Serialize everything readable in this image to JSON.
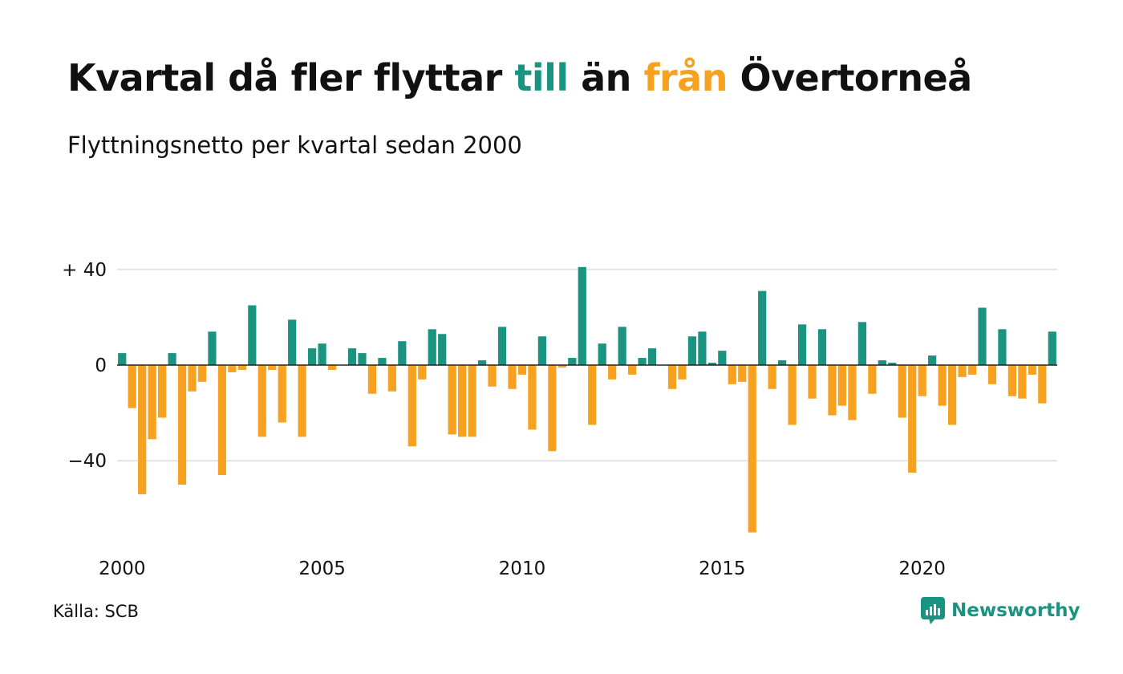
{
  "title": {
    "part1": "Kvartal då fler flyttar ",
    "highlight_pos": "till",
    "part2": " än ",
    "highlight_neg": "från",
    "part3": " Övertorneå"
  },
  "subtitle": "Flyttningsnetto per kvartal sedan 2000",
  "source": "Källa: SCB",
  "brand": "Newsworthy",
  "colors": {
    "positive": "#1a9481",
    "negative": "#f6a11f",
    "grid": "#e3e3e3",
    "baseline": "#222222"
  },
  "chart_data": {
    "type": "bar",
    "title": "Kvartal då fler flyttar till än från Övertorneå",
    "subtitle": "Flyttningsnetto per kvartal sedan 2000",
    "xlabel": "",
    "ylabel": "",
    "ylim": [
      -72,
      44
    ],
    "grid": true,
    "legend": "none",
    "y_ticks": [
      {
        "value": 40,
        "label": "+ 40"
      },
      {
        "value": 0,
        "label": "0"
      },
      {
        "value": -40,
        "label": "−40"
      }
    ],
    "x_ticks": [
      {
        "quarter": "2000-Q1",
        "label": "2000"
      },
      {
        "quarter": "2005-Q1",
        "label": "2005"
      },
      {
        "quarter": "2010-Q1",
        "label": "2010"
      },
      {
        "quarter": "2015-Q1",
        "label": "2015"
      },
      {
        "quarter": "2020-Q1",
        "label": "2020"
      }
    ],
    "categories": [
      "2000-Q1",
      "2000-Q2",
      "2000-Q3",
      "2000-Q4",
      "2001-Q1",
      "2001-Q2",
      "2001-Q3",
      "2001-Q4",
      "2002-Q1",
      "2002-Q2",
      "2002-Q3",
      "2002-Q4",
      "2003-Q1",
      "2003-Q2",
      "2003-Q3",
      "2003-Q4",
      "2004-Q1",
      "2004-Q2",
      "2004-Q3",
      "2004-Q4",
      "2005-Q1",
      "2005-Q2",
      "2005-Q3",
      "2005-Q4",
      "2006-Q1",
      "2006-Q2",
      "2006-Q3",
      "2006-Q4",
      "2007-Q1",
      "2007-Q2",
      "2007-Q3",
      "2007-Q4",
      "2008-Q1",
      "2008-Q2",
      "2008-Q3",
      "2008-Q4",
      "2009-Q1",
      "2009-Q2",
      "2009-Q3",
      "2009-Q4",
      "2010-Q1",
      "2010-Q2",
      "2010-Q3",
      "2010-Q4",
      "2011-Q1",
      "2011-Q2",
      "2011-Q3",
      "2011-Q4",
      "2012-Q1",
      "2012-Q2",
      "2012-Q3",
      "2012-Q4",
      "2013-Q1",
      "2013-Q2",
      "2013-Q3",
      "2013-Q4",
      "2014-Q1",
      "2014-Q2",
      "2014-Q3",
      "2014-Q4",
      "2015-Q1",
      "2015-Q2",
      "2015-Q3",
      "2015-Q4",
      "2016-Q1",
      "2016-Q2",
      "2016-Q3",
      "2016-Q4",
      "2017-Q1",
      "2017-Q2",
      "2017-Q3",
      "2017-Q4",
      "2018-Q1",
      "2018-Q2",
      "2018-Q3",
      "2018-Q4",
      "2019-Q1",
      "2019-Q2",
      "2019-Q3",
      "2019-Q4",
      "2020-Q1",
      "2020-Q2",
      "2020-Q3",
      "2020-Q4",
      "2021-Q1",
      "2021-Q2",
      "2021-Q3",
      "2021-Q4",
      "2022-Q1",
      "2022-Q2",
      "2022-Q3",
      "2022-Q4",
      "2023-Q1",
      "2023-Q2"
    ],
    "values": [
      5,
      -18,
      -54,
      -31,
      -22,
      5,
      -50,
      -11,
      -7,
      14,
      -46,
      -3,
      -2,
      25,
      -30,
      -2,
      -24,
      19,
      -30,
      7,
      9,
      -2,
      0,
      7,
      5,
      -12,
      3,
      -11,
      10,
      -34,
      -6,
      15,
      13,
      -29,
      -30,
      -30,
      2,
      -9,
      16,
      -10,
      -4,
      -27,
      12,
      -36,
      -1,
      3,
      41,
      -25,
      9,
      -6,
      16,
      -4,
      3,
      7,
      0,
      -10,
      -6,
      12,
      14,
      1,
      6,
      -8,
      -7,
      -70,
      31,
      -10,
      2,
      -25,
      17,
      -14,
      15,
      -21,
      -17,
      -23,
      18,
      -12,
      2,
      1,
      -22,
      -45,
      -13,
      4,
      -17,
      -25,
      -5,
      -4,
      24,
      -8,
      15,
      -13,
      -14,
      -4,
      -16,
      14
    ]
  }
}
